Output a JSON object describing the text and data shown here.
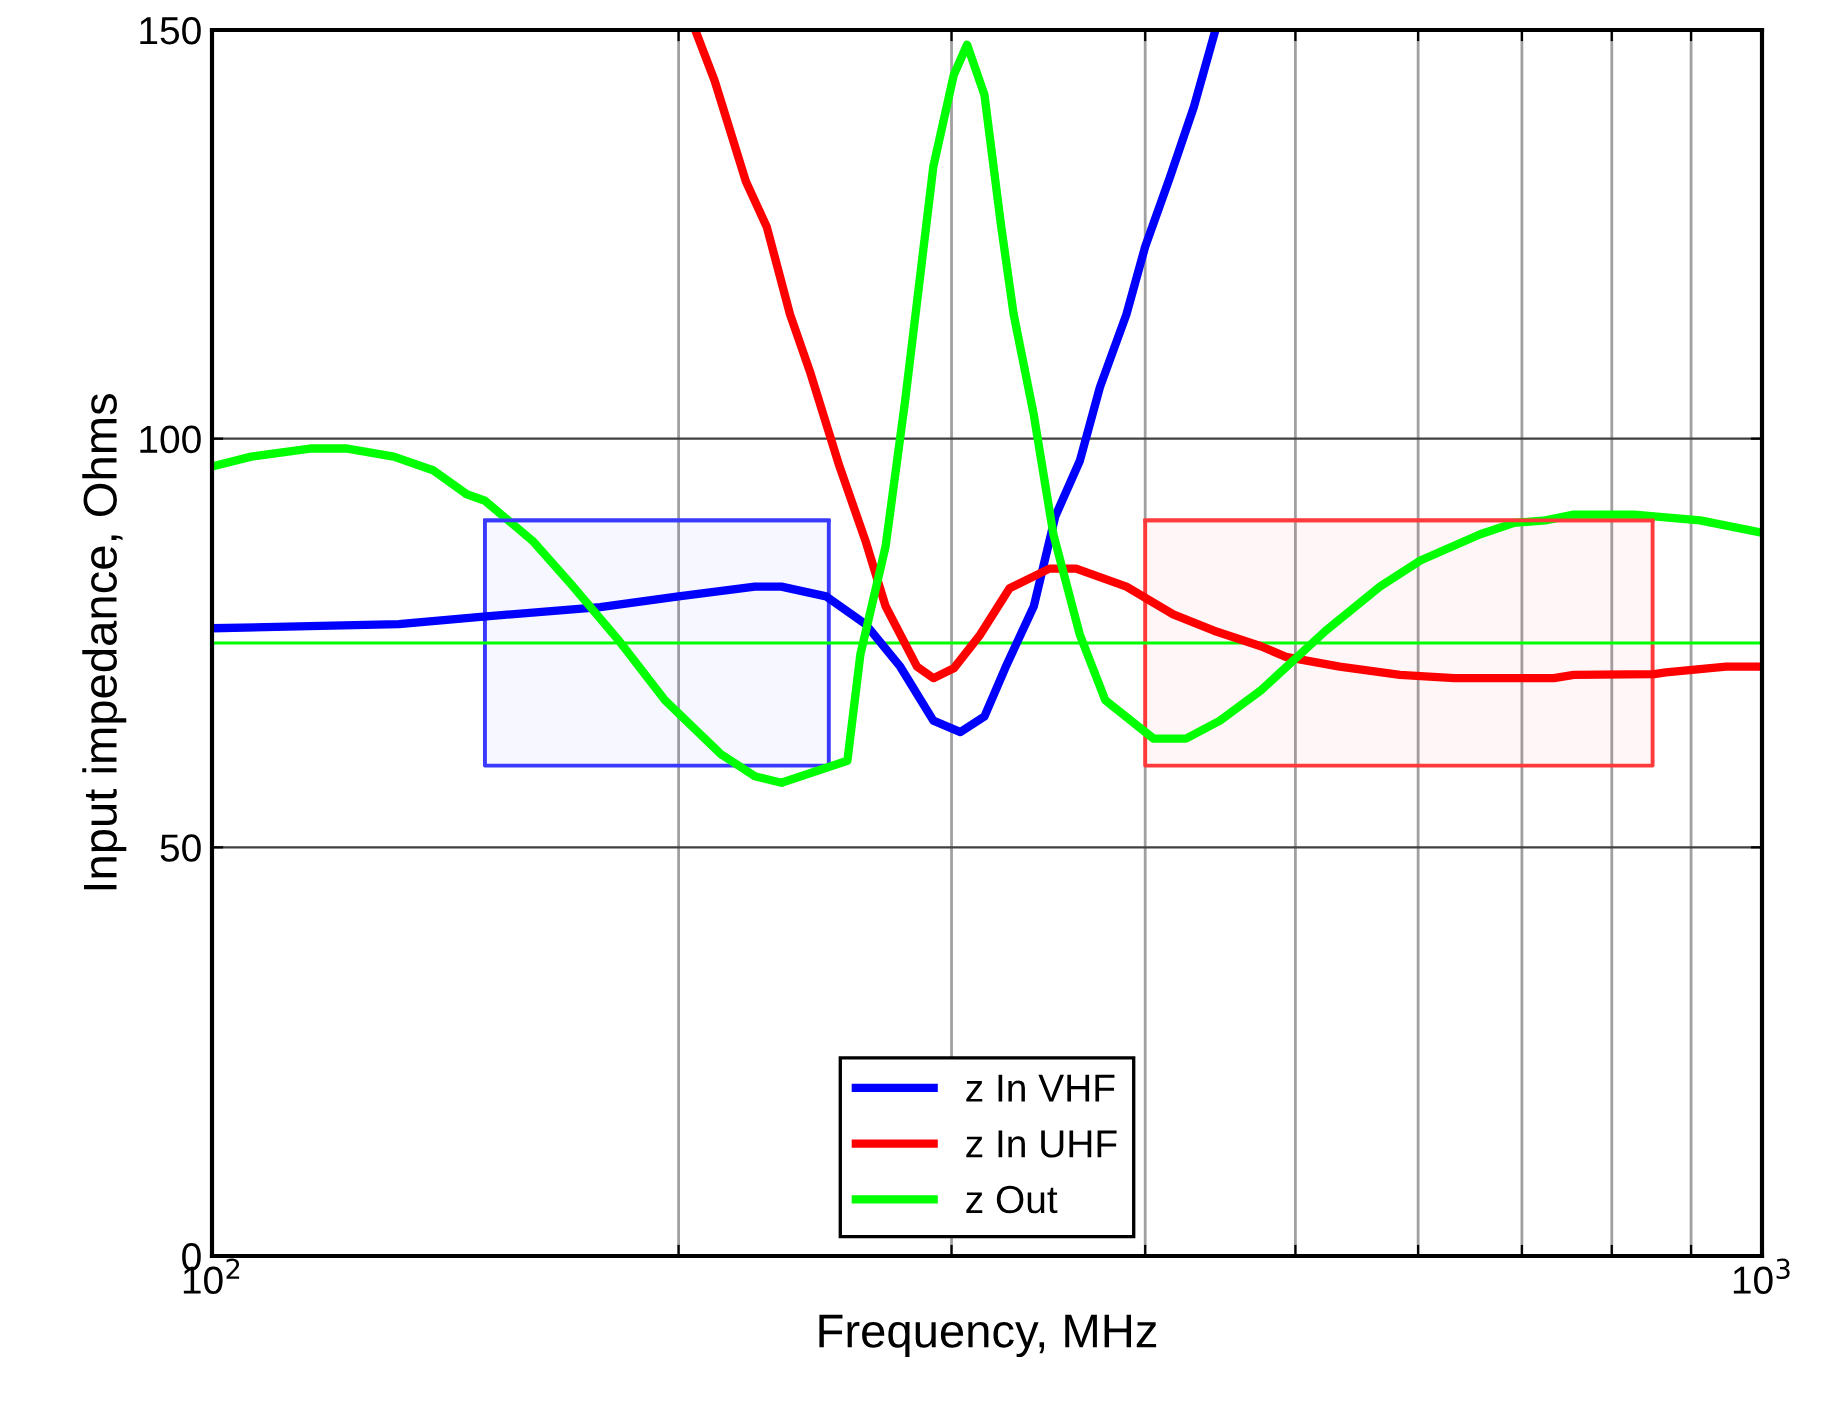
{
  "chart_data": {
    "type": "line",
    "xlabel": "Frequency, MHz",
    "ylabel": "Input impedance, Ohms",
    "log": "x",
    "xlim": [
      100,
      1000
    ],
    "ylim": [
      0,
      150
    ],
    "xticks": [
      {
        "value": 100,
        "label": "10$^{2}$"
      },
      {
        "value": 200,
        "label": null
      },
      {
        "value": 300,
        "label": null
      },
      {
        "value": 400,
        "label": null
      },
      {
        "value": 500,
        "label": null
      },
      {
        "value": 600,
        "label": null
      },
      {
        "value": 700,
        "label": null
      },
      {
        "value": 800,
        "label": null
      },
      {
        "value": 900,
        "label": null
      },
      {
        "value": 1000,
        "label": "10$^{3}$"
      }
    ],
    "yticks": [
      0,
      50,
      100,
      150
    ],
    "grid": true,
    "legend": "bottom",
    "marker": "none",
    "line_style": "solid",
    "ref_lines": [
      {
        "axis": "y",
        "value": 75,
        "label": null,
        "color": "#00ff00"
      }
    ],
    "series": [
      {
        "name": "z In VHF",
        "color": "#0000ff",
        "x": [
          100,
          132,
          149,
          178,
          200,
          224,
          233,
          249,
          264,
          278,
          292,
          304,
          315,
          325,
          339,
          350,
          363,
          374,
          389,
          400,
          415,
          430,
          444
        ],
        "values": [
          76.8,
          77.3,
          78.2,
          79.4,
          80.7,
          81.9,
          81.9,
          80.7,
          77.3,
          72.1,
          65.5,
          64.1,
          66,
          72,
          79.5,
          90.5,
          97.3,
          106.3,
          115.2,
          123.5,
          132,
          140.6,
          150
        ]
      },
      {
        "name": "z In UHF",
        "color": "#ff0000",
        "x": [
          205,
          211,
          221,
          228,
          236,
          243,
          254,
          264,
          272,
          285,
          292,
          301,
          313,
          327,
          347,
          361,
          389,
          417,
          443,
          475,
          493,
          534,
          584,
          633,
          734,
          756,
          852,
          867,
          948,
          1000
        ],
        "values": [
          150,
          143.8,
          131.5,
          125.9,
          115.2,
          108.3,
          96.6,
          87.5,
          79.5,
          72.1,
          70.7,
          71.9,
          76,
          81.7,
          84.1,
          84.1,
          81.9,
          78.5,
          76.5,
          74.6,
          73.3,
          72.1,
          71.1,
          70.7,
          70.7,
          71.1,
          71.2,
          71.4,
          72.1,
          72.1
        ]
      },
      {
        "name": "z Out",
        "color": "#00ff00",
        "x": [
          100,
          106,
          116,
          122,
          131,
          139,
          146,
          150,
          161,
          171,
          183,
          196,
          213,
          224,
          233,
          257,
          262,
          272,
          280,
          292,
          301,
          307,
          315,
          323,
          329,
          339,
          349,
          363,
          377,
          405,
          425,
          447,
          475,
          523,
          567,
          602,
          658,
          692,
          725,
          756,
          827,
          852,
          912,
          1000
        ],
        "values": [
          96.6,
          97.8,
          98.8,
          98.8,
          97.8,
          96.1,
          93.2,
          92.4,
          87.5,
          81.9,
          75.3,
          68,
          61.4,
          58.7,
          57.9,
          60.6,
          73.6,
          86.8,
          104.6,
          133.3,
          144.5,
          148.2,
          142.1,
          125.9,
          115.2,
          102.9,
          88.3,
          76,
          68,
          63.3,
          63.3,
          65.5,
          69.2,
          76.5,
          81.9,
          85.1,
          88.3,
          89.7,
          90,
          90.7,
          90.7,
          90.5,
          90,
          88.5
        ]
      },
      {
        "color": "#3a3aff",
        "x": [
          150,
          250
        ],
        "values": [
          90,
          90
        ],
        "lower": [
          60,
          60
        ],
        "upper": [
          90,
          90
        ]
      },
      {
        "color": "#ff3a3a",
        "x": [
          400,
          850
        ],
        "values": [
          90,
          90
        ],
        "lower": [
          60,
          60
        ],
        "upper": [
          90,
          90
        ]
      }
    ]
  }
}
